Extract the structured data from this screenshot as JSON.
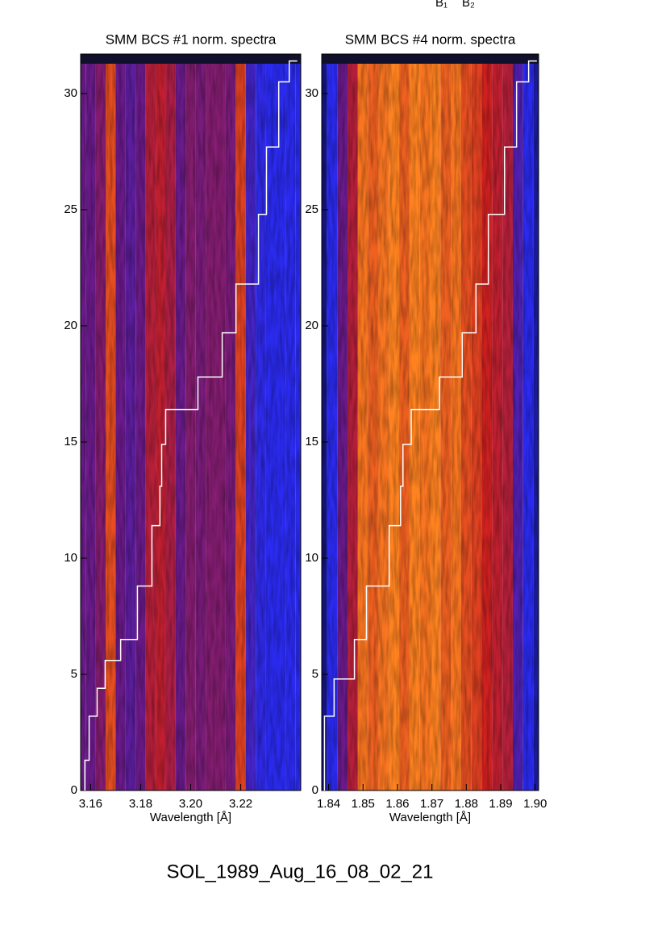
{
  "header_labels": [
    "B₁",
    "B₂"
  ],
  "footer": "SOL_1989_Aug_16_08_02_21",
  "chart_data": [
    {
      "type": "spectrogram",
      "title": "SMM BCS #1 norm. spectra",
      "x_label": "Wavelength [Å]",
      "xlim": [
        3.156,
        3.244
      ],
      "xticks": [
        {
          "value": 3.16,
          "label": "3.16"
        },
        {
          "value": 3.18,
          "label": "3.18"
        },
        {
          "value": 3.2,
          "label": "3.20"
        },
        {
          "value": 3.22,
          "label": "3.22"
        }
      ],
      "ylim": [
        0,
        31.7
      ],
      "yticks": [
        0,
        5,
        10,
        15,
        20,
        25,
        30
      ],
      "profile": {
        "x": [
          3.156,
          3.16,
          3.164,
          3.168,
          3.172,
          3.176,
          3.18,
          3.184,
          3.188,
          3.192,
          3.196,
          3.2,
          3.204,
          3.208,
          3.212,
          3.216,
          3.22,
          3.224,
          3.228,
          3.232,
          3.236,
          3.24,
          3.244
        ],
        "values": [
          0.55,
          0.55,
          0.6,
          0.82,
          0.55,
          0.5,
          0.55,
          0.7,
          0.72,
          0.68,
          0.55,
          0.6,
          0.58,
          0.6,
          0.6,
          0.58,
          0.8,
          0.4,
          0.32,
          0.3,
          0.3,
          0.3,
          0.3
        ]
      },
      "series": [
        {
          "color": "#ffffff",
          "x": [
            3.1577,
            3.1594,
            3.1626,
            3.1658,
            3.172,
            3.1787,
            3.1845,
            3.1877,
            3.1884,
            3.19,
            3.2029,
            3.2126,
            3.2181,
            3.2271,
            3.2303,
            3.2352,
            3.2394,
            3.2426
          ],
          "values": [
            0,
            1.3,
            3.2,
            4.4,
            5.6,
            6.5,
            8.8,
            11.4,
            13.1,
            14.9,
            16.4,
            17.8,
            19.7,
            21.8,
            24.8,
            27.7,
            30.5,
            31.4
          ]
        }
      ]
    },
    {
      "type": "spectrogram",
      "title": "SMM BCS #4 norm. spectra",
      "x_label": "Wavelength [Å]",
      "xlim": [
        1.838,
        1.901
      ],
      "xticks": [
        1.84,
        1.85,
        1.86,
        1.87,
        1.88,
        1.89,
        {
          "value": 1.9,
          "label": "1.90"
        }
      ],
      "ylim": [
        0,
        31.7
      ],
      "yticks": [
        0,
        5,
        10,
        15,
        20,
        25,
        30
      ],
      "profile": {
        "x": [
          1.838,
          1.841,
          1.844,
          1.847,
          1.85,
          1.853,
          1.856,
          1.859,
          1.862,
          1.865,
          1.868,
          1.871,
          1.874,
          1.877,
          1.88,
          1.883,
          1.886,
          1.889,
          1.892,
          1.895,
          1.898,
          1.901
        ],
        "values": [
          0.15,
          0.3,
          0.55,
          0.7,
          0.88,
          0.85,
          0.88,
          0.9,
          0.85,
          0.9,
          0.88,
          0.9,
          0.85,
          0.88,
          0.82,
          0.8,
          0.75,
          0.72,
          0.7,
          0.45,
          0.3,
          0.2
        ]
      },
      "series": [
        {
          "color": "#ffffff",
          "x": [
            1.8388,
            1.8416,
            1.8475,
            1.851,
            1.8576,
            1.8609,
            1.8616,
            1.864,
            1.8722,
            1.8788,
            1.8828,
            1.8864,
            1.8911,
            1.8946,
            1.8981,
            1.9005
          ],
          "values": [
            0,
            3.2,
            4.8,
            6.5,
            8.8,
            11.4,
            13.1,
            14.9,
            16.4,
            17.8,
            19.7,
            21.8,
            24.8,
            27.7,
            30.5,
            31.4
          ]
        }
      ]
    }
  ]
}
